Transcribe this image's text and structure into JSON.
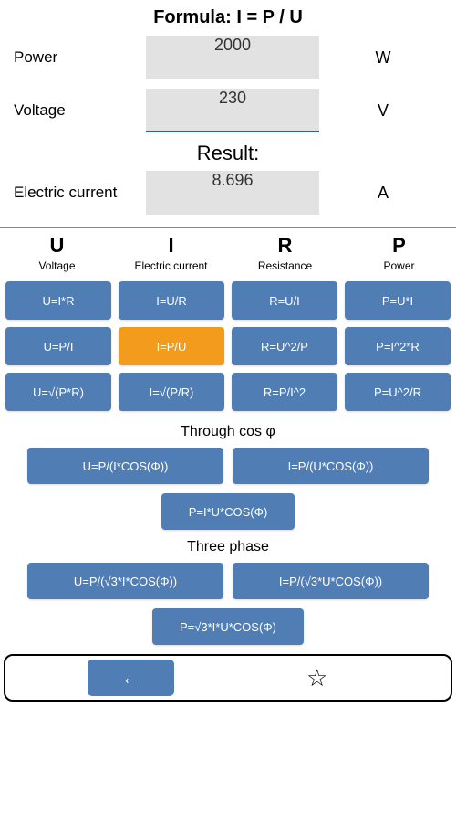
{
  "colors": {
    "button_bg": "#4f7db4",
    "button_selected": "#f29b1d",
    "input_bg": "#e2e2e2",
    "active_border": "#2962aa"
  },
  "header": {
    "formula_title": "Formula: I = P / U"
  },
  "inputs": [
    {
      "label": "Power",
      "value": "2000",
      "unit": "W",
      "active": false
    },
    {
      "label": "Voltage",
      "value": "230",
      "unit": "V",
      "active": true
    }
  ],
  "result_label": "Result:",
  "result": {
    "label": "Electric current",
    "value": "8.696",
    "unit": "A"
  },
  "categories": [
    {
      "symbol": "U",
      "name": "Voltage"
    },
    {
      "symbol": "I",
      "name": "Electric current"
    },
    {
      "symbol": "R",
      "name": "Resistance"
    },
    {
      "symbol": "P",
      "name": "Power"
    }
  ],
  "formula_grid": [
    [
      "U=I*R",
      "I=U/R",
      "R=U/I",
      "P=U*I"
    ],
    [
      "U=P/I",
      "I=P/U",
      "R=U^2/P",
      "P=I^2*R"
    ],
    [
      "U=√(P*R)",
      "I=√(P/R)",
      "R=P/I^2",
      "P=U^2/R"
    ]
  ],
  "selected_formula": "I=P/U",
  "section_cos": "Through cos φ",
  "cos_row": [
    "U=P/(I*COS(Φ))",
    "I=P/(U*COS(Φ))"
  ],
  "cos_single": "P=I*U*COS(Φ)",
  "section_three": "Three phase",
  "three_row": [
    "U=P/(√3*I*COS(Φ))",
    "I=P/(√3*U*COS(Φ))"
  ],
  "three_single": "P=√3*I*U*COS(Φ)",
  "bottom": {
    "back": "←",
    "star": "☆"
  }
}
